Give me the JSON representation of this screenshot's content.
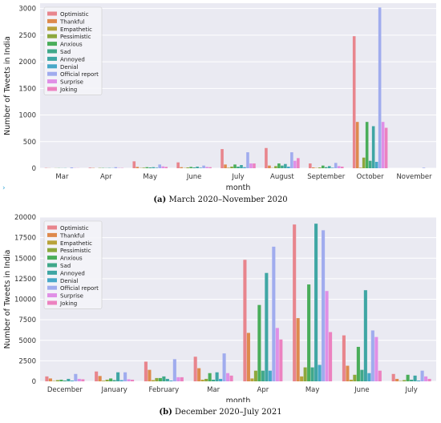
{
  "colors": {
    "Optimistic": "#e8858d",
    "Thankful": "#de8a4d",
    "Empathetic": "#b8a23a",
    "Pessimistic": "#8ca83d",
    "Anxious": "#4aad5a",
    "Sad": "#40a88a",
    "Annoyed": "#3fa6a4",
    "Denial": "#47a8c8",
    "Official report": "#a0acee",
    "Surprise": "#e08fe6",
    "Joking": "#ec82c0"
  },
  "captions": [
    {
      "label": "(a)",
      "text": "March 2020–November 2020"
    },
    {
      "label": "(b)",
      "text": "December 2020–July 2021"
    }
  ],
  "chart_data": [
    {
      "type": "bar",
      "xlabel": "month",
      "ylabel": "Number of Tweets in India",
      "ylim": [
        0,
        3100
      ],
      "yticks": [
        0,
        500,
        1000,
        1500,
        2000,
        2500,
        3000
      ],
      "grid": true,
      "legend_placement": "top-left",
      "categories": [
        "Mar",
        "Apr",
        "May",
        "June",
        "July",
        "August",
        "September",
        "October",
        "November"
      ],
      "series": [
        {
          "name": "Optimistic",
          "values": [
            5,
            10,
            130,
            110,
            360,
            380,
            90,
            2480,
            0
          ]
        },
        {
          "name": "Thankful",
          "values": [
            2,
            5,
            25,
            20,
            70,
            50,
            15,
            870,
            0
          ]
        },
        {
          "name": "Empathetic",
          "values": [
            0,
            0,
            5,
            5,
            10,
            5,
            5,
            10,
            0
          ]
        },
        {
          "name": "Pessimistic",
          "values": [
            2,
            5,
            10,
            15,
            30,
            40,
            15,
            200,
            0
          ]
        },
        {
          "name": "Anxious",
          "values": [
            3,
            5,
            20,
            25,
            70,
            90,
            50,
            870,
            0
          ]
        },
        {
          "name": "Sad",
          "values": [
            2,
            3,
            15,
            15,
            30,
            50,
            20,
            140,
            0
          ]
        },
        {
          "name": "Annoyed",
          "values": [
            3,
            5,
            20,
            30,
            60,
            80,
            40,
            790,
            0
          ]
        },
        {
          "name": "Denial",
          "values": [
            0,
            3,
            10,
            10,
            20,
            30,
            10,
            120,
            0
          ]
        },
        {
          "name": "Official report",
          "values": [
            15,
            20,
            70,
            50,
            300,
            300,
            100,
            3020,
            10
          ]
        },
        {
          "name": "Surprise",
          "values": [
            3,
            5,
            35,
            25,
            90,
            140,
            40,
            870,
            0
          ]
        },
        {
          "name": "Joking",
          "values": [
            2,
            5,
            25,
            20,
            90,
            190,
            30,
            760,
            0
          ]
        }
      ]
    },
    {
      "type": "bar",
      "xlabel": "month",
      "ylabel": "Number of Tweets in India",
      "ylim": [
        0,
        20000
      ],
      "yticks": [
        0,
        2500,
        5000,
        7500,
        10000,
        12500,
        15000,
        17500,
        20000
      ],
      "grid": true,
      "legend_placement": "top-left",
      "categories": [
        "December",
        "January",
        "February",
        "Mar",
        "Apr",
        "May",
        "June",
        "July"
      ],
      "series": [
        {
          "name": "Optimistic",
          "values": [
            600,
            1200,
            2400,
            3000,
            14800,
            19100,
            5600,
            900
          ]
        },
        {
          "name": "Thankful",
          "values": [
            350,
            650,
            1400,
            1600,
            5900,
            7700,
            1900,
            300
          ]
        },
        {
          "name": "Empathetic",
          "values": [
            50,
            80,
            150,
            200,
            350,
            600,
            200,
            50
          ]
        },
        {
          "name": "Pessimistic",
          "values": [
            150,
            200,
            400,
            300,
            1300,
            1700,
            800,
            150
          ]
        },
        {
          "name": "Anxious",
          "values": [
            200,
            350,
            400,
            1000,
            9300,
            11800,
            4200,
            800
          ]
        },
        {
          "name": "Sad",
          "values": [
            100,
            150,
            600,
            200,
            1300,
            1700,
            1400,
            200
          ]
        },
        {
          "name": "Annoyed",
          "values": [
            300,
            1100,
            300,
            1100,
            13200,
            19200,
            11100,
            700
          ]
        },
        {
          "name": "Denial",
          "values": [
            100,
            150,
            100,
            300,
            1300,
            2000,
            1000,
            100
          ]
        },
        {
          "name": "Official report",
          "values": [
            900,
            1100,
            2700,
            3400,
            16400,
            18400,
            6200,
            1300
          ]
        },
        {
          "name": "Surprise",
          "values": [
            300,
            250,
            500,
            1000,
            6500,
            11000,
            5400,
            600
          ]
        },
        {
          "name": "Joking",
          "values": [
            250,
            200,
            500,
            700,
            5100,
            6000,
            1300,
            300
          ]
        }
      ]
    }
  ]
}
